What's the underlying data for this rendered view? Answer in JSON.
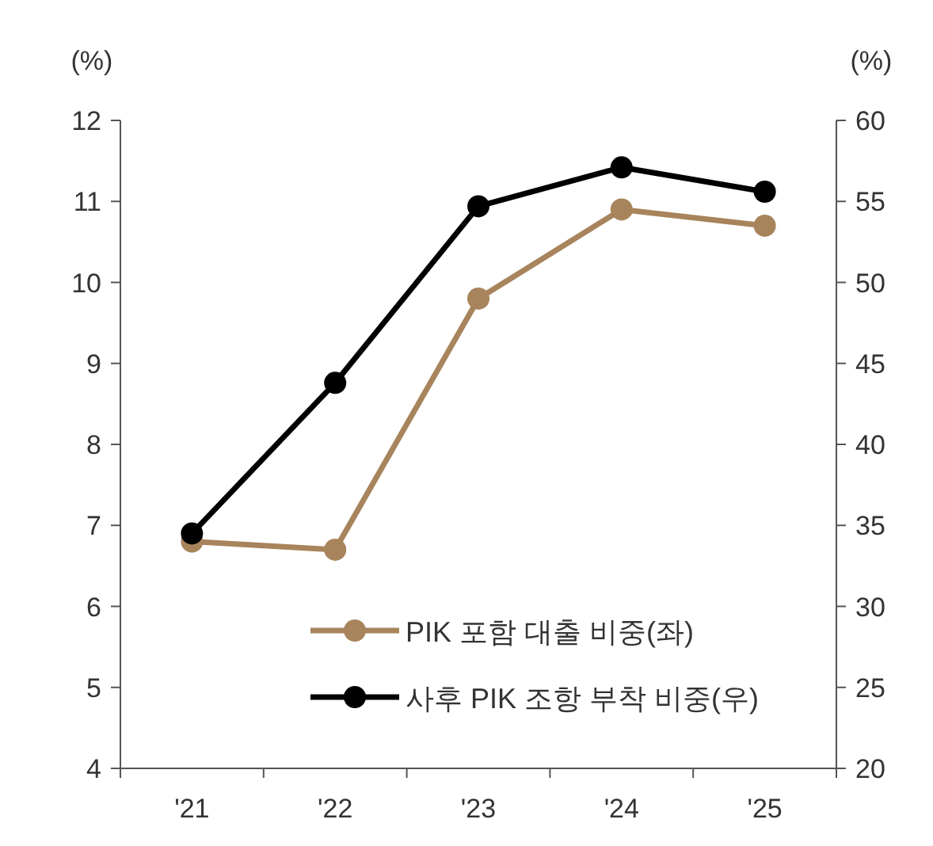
{
  "chart_data": {
    "type": "line",
    "ylabel": "(%)",
    "y2label": "(%)",
    "categories": [
      "'21",
      "'22",
      "'23",
      "'24",
      "'25"
    ],
    "series": [
      {
        "name": "PIK 포함 대출 비중(좌)",
        "color": "#a8845c",
        "values": [
          6.8,
          6.7,
          9.8,
          10.9,
          10.7
        ]
      },
      {
        "name": "사후 PIK 조항 부착 비중(우)",
        "color": "#000000",
        "axis": "y2",
        "values": [
          34.5,
          43.8,
          54.7,
          57.1,
          55.6
        ]
      }
    ],
    "ylim": [
      4,
      12
    ],
    "yticks": [
      4,
      5,
      6,
      7,
      8,
      9,
      10,
      11,
      12
    ],
    "y2lim": [
      20,
      60
    ],
    "y2ticks": [
      20,
      25,
      30,
      35,
      40,
      45,
      50,
      55,
      60
    ],
    "marker": "circle",
    "line_style": "solid",
    "legend": "bottom"
  }
}
